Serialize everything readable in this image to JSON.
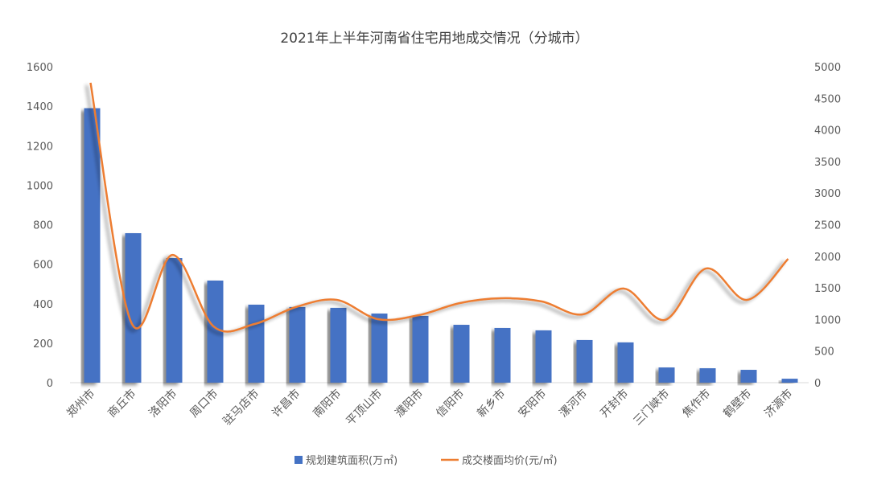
{
  "chart_data": {
    "type": "bar+line",
    "title": "2021年上半年河南省住宅用地成交情况（分城市）",
    "categories": [
      "郑州市",
      "商丘市",
      "洛阳市",
      "周口市",
      "驻马店市",
      "许昌市",
      "南阳市",
      "平顶山市",
      "濮阳市",
      "信阳市",
      "新乡市",
      "安阳市",
      "漯河市",
      "开封市",
      "三门峡市",
      "焦作市",
      "鹤壁市",
      "济源市"
    ],
    "series": [
      {
        "name": "规划建筑面积(万㎡)",
        "type": "bar",
        "axis": "left",
        "color": "#4472C4",
        "values": [
          1390,
          757,
          631,
          517,
          395,
          383,
          379,
          350,
          338,
          293,
          277,
          265,
          216,
          204,
          77,
          73,
          65,
          20
        ]
      },
      {
        "name": "成交楼面均价(元/㎡)",
        "type": "line",
        "axis": "right",
        "color": "#ED7D31",
        "values": [
          4746,
          942,
          2022,
          890,
          929,
          1196,
          1310,
          1005,
          1069,
          1260,
          1336,
          1285,
          1081,
          1489,
          993,
          1807,
          1310,
          1959
        ]
      }
    ],
    "left_axis": {
      "ylim": [
        0,
        1600
      ],
      "ticks": [
        "0",
        "200",
        "400",
        "600",
        "800",
        "1000",
        "1200",
        "1400",
        "1600"
      ]
    },
    "right_axis": {
      "ylim": [
        0,
        5000
      ],
      "ticks": [
        "0",
        "500",
        "1000",
        "1500",
        "2000",
        "2500",
        "3000",
        "3500",
        "4000",
        "4500",
        "5000"
      ]
    },
    "grid": false,
    "legend": "bottom"
  }
}
